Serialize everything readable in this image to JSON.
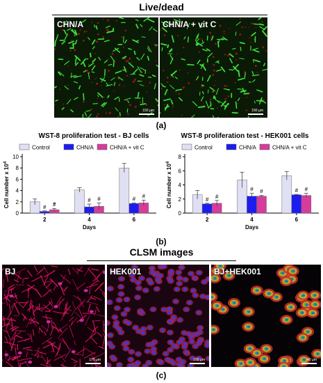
{
  "live_dead": {
    "title": "Live/dead",
    "panels": [
      {
        "label": "CHN/A",
        "scale": "150 µm"
      },
      {
        "label": "CHN/A + vit C",
        "scale": "150 µm"
      }
    ],
    "caption": "(a)"
  },
  "proliferation": {
    "caption": "(b)"
  },
  "chart_data": [
    {
      "type": "bar",
      "title": "WST-8 proliferation test - BJ cells",
      "xlabel": "Days",
      "ylabel": "Cell number x 10",
      "ylabel_exponent": "4",
      "categories": [
        "2",
        "4",
        "6"
      ],
      "ylim": [
        0,
        10
      ],
      "yticks": [
        "0",
        "2",
        "4",
        "6",
        "8",
        "10"
      ],
      "legend_position": "top",
      "series": [
        {
          "name": "Control",
          "values": [
            2.0,
            4.1,
            8.0
          ],
          "errors": [
            0.5,
            0.4,
            0.8
          ],
          "color": "#e0e0f5"
        },
        {
          "name": "CHN/A",
          "values": [
            0.3,
            1.1,
            1.7
          ],
          "errors": [
            0.1,
            0.5,
            0.1
          ],
          "color": "#1c1cf0"
        },
        {
          "name": "CHN/A + vit C",
          "values": [
            0.6,
            1.2,
            1.8
          ],
          "errors": [
            0.2,
            0.6,
            0.5
          ],
          "color": "#d63c9c"
        }
      ],
      "markers": [
        [
          "",
          "#",
          "#"
        ],
        [
          "",
          "#",
          "#"
        ],
        [
          "",
          "#",
          "#"
        ]
      ],
      "extra_mark": {
        "text": "*",
        "group": 0,
        "series": 2
      }
    },
    {
      "type": "bar",
      "title": "WST-8 proliferation test - HEK001 cells",
      "xlabel": "Days",
      "ylabel": "Cell number x 10",
      "ylabel_exponent": "4",
      "categories": [
        "2",
        "4",
        "6"
      ],
      "ylim": [
        0,
        8
      ],
      "yticks": [
        "0",
        "2",
        "4",
        "6",
        "8"
      ],
      "legend_position": "top",
      "series": [
        {
          "name": "Control",
          "values": [
            2.6,
            4.7,
            5.3
          ],
          "errors": [
            0.6,
            1.1,
            0.6
          ],
          "color": "#e0e0f5"
        },
        {
          "name": "CHN/A",
          "values": [
            1.3,
            2.4,
            2.6
          ],
          "errors": [
            0.1,
            0.4,
            0.05
          ],
          "color": "#1c1cf0"
        },
        {
          "name": "CHN/A + vit C",
          "values": [
            1.4,
            2.4,
            2.5
          ],
          "errors": [
            0.4,
            0.1,
            0.3
          ],
          "color": "#d63c9c"
        }
      ],
      "markers": [
        [
          "",
          "#",
          "#"
        ],
        [
          "",
          "#",
          "#"
        ],
        [
          "",
          "#",
          "#"
        ]
      ]
    }
  ],
  "clsm": {
    "title": "CLSM images",
    "panels": [
      {
        "label": "BJ",
        "scale": "170 µm"
      },
      {
        "label": "HEK001",
        "scale": "100 µm"
      },
      {
        "label": "BJ+HEK001",
        "scale": "40 µm"
      }
    ],
    "caption": "(c)"
  },
  "colors": {
    "live_green": "#3ce03c",
    "dead_red": "#c0191c",
    "actin_pink": "#e8186a",
    "nucleus_blue": "#3a3ad8"
  }
}
